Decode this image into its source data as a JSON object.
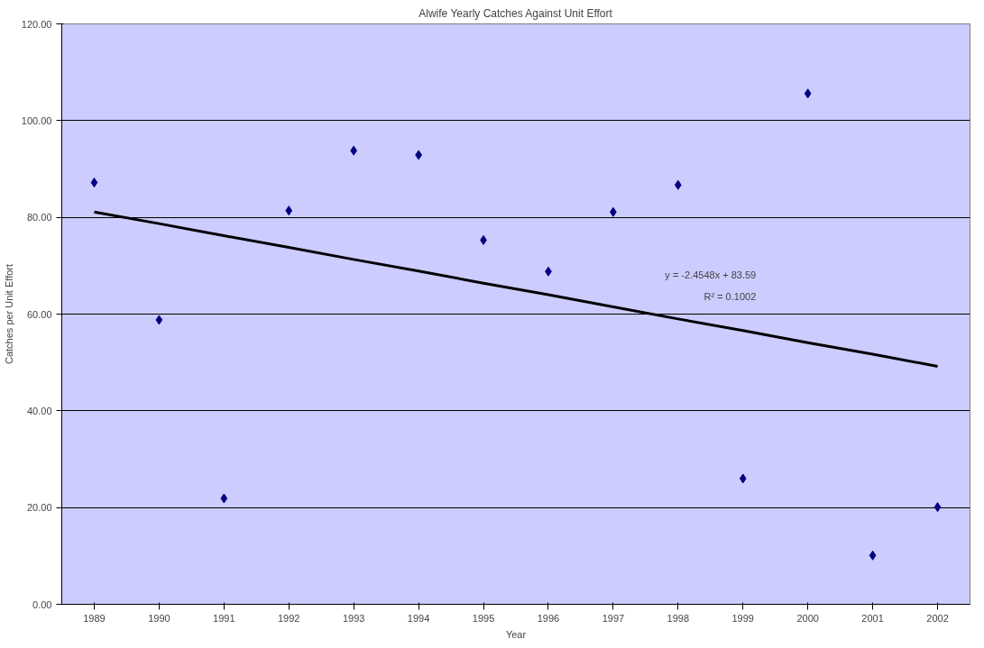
{
  "chart_data": {
    "type": "scatter",
    "title": "Alwife Yearly Catches Against Unit Effort",
    "xlabel": "Year",
    "ylabel": "Catches per Unit Effort",
    "categories": [
      "1989",
      "1990",
      "1991",
      "1992",
      "1993",
      "1994",
      "1995",
      "1996",
      "1997",
      "1998",
      "1999",
      "2000",
      "2001",
      "2002"
    ],
    "series": [
      {
        "color": "#000080",
        "marker": "diamond",
        "values": [
          87.2,
          58.8,
          21.9,
          81.4,
          93.8,
          92.9,
          75.3,
          68.8,
          81.1,
          86.7,
          26.0,
          105.6,
          10.1,
          20.1
        ]
      },
      {
        "type": "line",
        "color": "#000000",
        "values": [
          81.1,
          78.7,
          76.2,
          73.8,
          71.3,
          68.9,
          66.4,
          64.0,
          61.5,
          59.0,
          56.6,
          54.1,
          51.7,
          49.2
        ]
      }
    ],
    "ylim": [
      0,
      120
    ],
    "yticks": [
      {
        "value": 0,
        "label": "0.00"
      },
      {
        "value": 20,
        "label": "20.00"
      },
      {
        "value": 40,
        "label": "40.00"
      },
      {
        "value": 60,
        "label": "60.00"
      },
      {
        "value": 80,
        "label": "80.00"
      },
      {
        "value": 100,
        "label": "100.00"
      },
      {
        "value": 120,
        "label": "120.00"
      }
    ],
    "grid": "y",
    "annotations": [
      "y = -2.4548x + 83.59",
      "R² = 0.1002"
    ]
  }
}
